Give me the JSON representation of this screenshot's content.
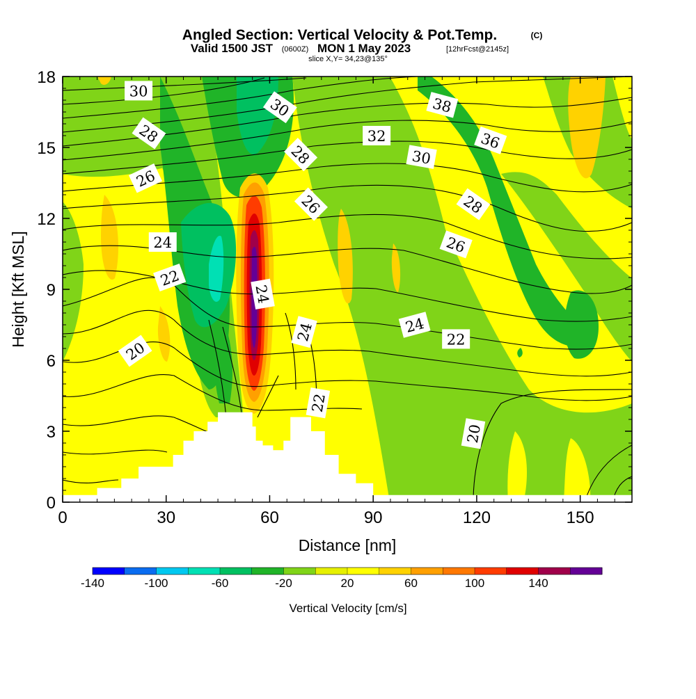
{
  "title": {
    "main": "Angled Section: Vertical Velocity & Pot.Temp.",
    "main_unit": "(C)",
    "valid_prefix": "Valid 1500 JST",
    "valid_utc": "(0600Z)",
    "valid_date": "MON 1 May 2023",
    "forecast": "[12hrFcst@2145z]",
    "slice": "slice X,Y= 34,23@135°"
  },
  "chart_data": {
    "type": "heatmap",
    "xlabel": "Distance [nm]",
    "ylabel": "Height [Kft MSL]",
    "xlim": [
      0,
      165
    ],
    "ylim": [
      0,
      18
    ],
    "x_ticks": [
      "0",
      "30",
      "60",
      "90",
      "120",
      "150"
    ],
    "y_ticks": [
      "0",
      "3",
      "6",
      "9",
      "12",
      "15",
      "18"
    ],
    "colorbar": {
      "label": "Vertical Velocity [cm/s]",
      "tick_labels": [
        "-140",
        "-100",
        "-60",
        "-20",
        "20",
        "60",
        "100",
        "140"
      ],
      "levels": [
        -140,
        -120,
        -100,
        -80,
        -60,
        -40,
        -20,
        0,
        20,
        40,
        60,
        80,
        100,
        120,
        140,
        160
      ],
      "colors": [
        "#0000ff",
        "#0a6cf0",
        "#00c8f0",
        "#00e0b4",
        "#00c060",
        "#20b428",
        "#80d418",
        "#e6f000",
        "#ffff00",
        "#ffd200",
        "#ffa000",
        "#ff7800",
        "#ff3c00",
        "#e00000",
        "#a0004a",
        "#640096"
      ]
    },
    "terrain_kft": [
      [
        0,
        0.3
      ],
      [
        10,
        0.6
      ],
      [
        17,
        1.0
      ],
      [
        22,
        1.5
      ],
      [
        32,
        2.0
      ],
      [
        35,
        2.6
      ],
      [
        38,
        3.0
      ],
      [
        42,
        3.4
      ],
      [
        45,
        3.8
      ],
      [
        52,
        3.8
      ],
      [
        55,
        3.2
      ],
      [
        56,
        2.6
      ],
      [
        58,
        2.4
      ],
      [
        61,
        2.2
      ],
      [
        64,
        2.6
      ],
      [
        66,
        3.6
      ],
      [
        70,
        3.6
      ],
      [
        72,
        3.0
      ],
      [
        76,
        2.0
      ],
      [
        80,
        1.2
      ],
      [
        85,
        0.8
      ],
      [
        90,
        0.3
      ],
      [
        165,
        0.3
      ]
    ],
    "contour_labels": [
      {
        "text": "30",
        "x": 22,
        "y": 17.4,
        "angle": 0
      },
      {
        "text": "28",
        "x": 25,
        "y": 15.6,
        "angle": 35
      },
      {
        "text": "26",
        "x": 24,
        "y": 13.7,
        "angle": -25
      },
      {
        "text": "24",
        "x": 29,
        "y": 11.0,
        "angle": 0
      },
      {
        "text": "22",
        "x": 31,
        "y": 9.5,
        "angle": -20
      },
      {
        "text": "20",
        "x": 21,
        "y": 6.4,
        "angle": -35
      },
      {
        "text": "30",
        "x": 63,
        "y": 16.7,
        "angle": 35
      },
      {
        "text": "28",
        "x": 69,
        "y": 14.7,
        "angle": 45
      },
      {
        "text": "26",
        "x": 72,
        "y": 12.6,
        "angle": 45
      },
      {
        "text": "24",
        "x": 58,
        "y": 8.8,
        "angle": 80
      },
      {
        "text": "24",
        "x": 70,
        "y": 7.2,
        "angle": -75
      },
      {
        "text": "22",
        "x": 74,
        "y": 4.2,
        "angle": -80
      },
      {
        "text": "32",
        "x": 91,
        "y": 15.5,
        "angle": 0
      },
      {
        "text": "30",
        "x": 104,
        "y": 14.6,
        "angle": 10
      },
      {
        "text": "38",
        "x": 110,
        "y": 16.8,
        "angle": 15
      },
      {
        "text": "36",
        "x": 124,
        "y": 15.3,
        "angle": 20
      },
      {
        "text": "28",
        "x": 119,
        "y": 12.6,
        "angle": 35
      },
      {
        "text": "26",
        "x": 114,
        "y": 10.9,
        "angle": 20
      },
      {
        "text": "24",
        "x": 102,
        "y": 7.5,
        "angle": -15
      },
      {
        "text": "22",
        "x": 114,
        "y": 6.9,
        "angle": 0
      },
      {
        "text": "20",
        "x": 119,
        "y": 2.9,
        "angle": -80
      }
    ]
  }
}
